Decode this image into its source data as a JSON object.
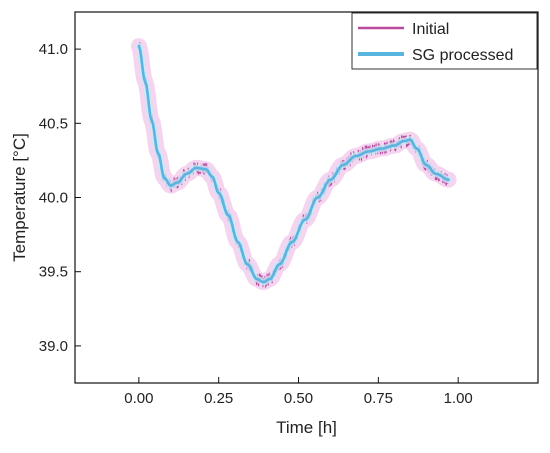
{
  "chart_data": {
    "type": "line",
    "title": "",
    "xlabel": "Time [h]",
    "ylabel": "Temperature [°C]",
    "xlim": [
      -0.2,
      1.25
    ],
    "ylim": [
      38.75,
      41.25
    ],
    "xticks": [
      "0.00",
      "0.25",
      "0.50",
      "0.75",
      "1.00"
    ],
    "yticks": [
      "39.0",
      "39.5",
      "40.0",
      "40.5",
      "41.0"
    ],
    "grid": false,
    "legend_position": "top-right",
    "series": [
      {
        "name": "Initial",
        "color": "#b8499c",
        "style": "noisy",
        "x": [
          0.0,
          0.02,
          0.04,
          0.06,
          0.08,
          0.1,
          0.12,
          0.15,
          0.18,
          0.21,
          0.23,
          0.25,
          0.28,
          0.31,
          0.34,
          0.37,
          0.39,
          0.41,
          0.44,
          0.48,
          0.52,
          0.56,
          0.6,
          0.64,
          0.68,
          0.72,
          0.76,
          0.8,
          0.83,
          0.85,
          0.87,
          0.9,
          0.93,
          0.97
        ],
        "y": [
          41.02,
          40.78,
          40.52,
          40.3,
          40.13,
          40.08,
          40.1,
          40.16,
          40.2,
          40.19,
          40.14,
          40.03,
          39.88,
          39.7,
          39.55,
          39.45,
          39.43,
          39.45,
          39.55,
          39.7,
          39.85,
          40.0,
          40.12,
          40.22,
          40.28,
          40.31,
          40.33,
          40.35,
          40.38,
          40.39,
          40.33,
          40.22,
          40.16,
          40.12
        ]
      },
      {
        "name": "SG processed",
        "color": "#5ab4e0",
        "style": "smooth",
        "x": [
          0.0,
          0.02,
          0.04,
          0.06,
          0.08,
          0.1,
          0.12,
          0.15,
          0.18,
          0.21,
          0.23,
          0.25,
          0.28,
          0.31,
          0.34,
          0.37,
          0.39,
          0.41,
          0.44,
          0.48,
          0.52,
          0.56,
          0.6,
          0.64,
          0.68,
          0.72,
          0.76,
          0.8,
          0.83,
          0.85,
          0.87,
          0.9,
          0.93,
          0.97
        ],
        "y": [
          41.02,
          40.78,
          40.52,
          40.3,
          40.13,
          40.08,
          40.1,
          40.16,
          40.2,
          40.19,
          40.14,
          40.03,
          39.88,
          39.7,
          39.55,
          39.45,
          39.43,
          39.45,
          39.55,
          39.7,
          39.85,
          40.0,
          40.12,
          40.22,
          40.28,
          40.31,
          40.33,
          40.35,
          40.38,
          40.39,
          40.33,
          40.22,
          40.16,
          40.12
        ]
      }
    ]
  }
}
